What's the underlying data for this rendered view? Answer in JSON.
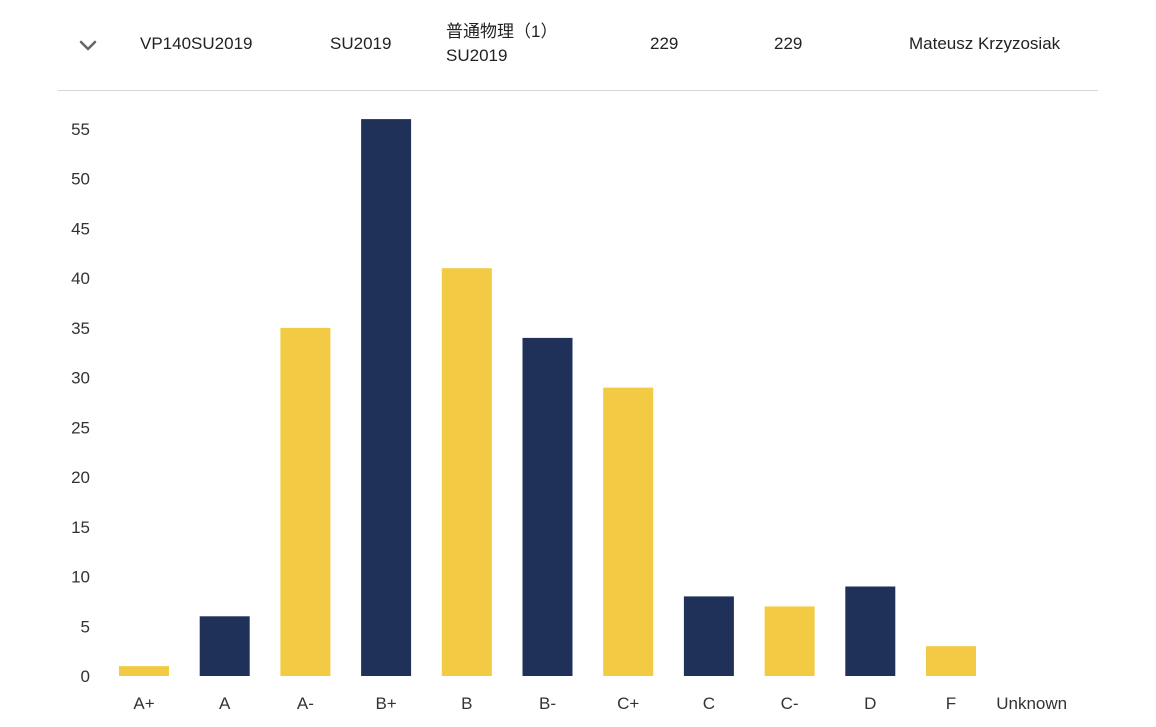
{
  "course_row": {
    "code": "VP140SU2019",
    "term": "SU2019",
    "title_line1": "普通物理（1）",
    "title_line2": "SU2019",
    "count_a": "229",
    "count_b": "229",
    "instructor": "Mateusz Krzyzosiak",
    "expand_icon": "chevron-down-icon"
  },
  "chart_data": {
    "type": "bar",
    "categories": [
      "A+",
      "A",
      "A-",
      "B+",
      "B",
      "B-",
      "C+",
      "C",
      "C-",
      "D",
      "F",
      "Unknown"
    ],
    "values": [
      1,
      6,
      35,
      56,
      41,
      34,
      29,
      8,
      7,
      9,
      3,
      0
    ],
    "ylim": [
      0,
      55
    ],
    "yticks": [
      0,
      5,
      10,
      15,
      20,
      25,
      30,
      35,
      40,
      45,
      50,
      55
    ],
    "colors": [
      "#f2ca44",
      "#1f3159"
    ],
    "grid": false,
    "legend": "none"
  }
}
